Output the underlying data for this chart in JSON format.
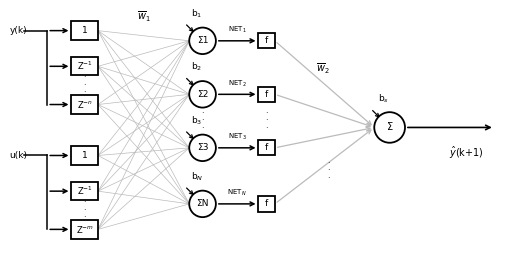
{
  "bg_color": "#ffffff",
  "line_color": "#000000",
  "gray_color": "#bbbbbb",
  "figsize": [
    5.23,
    2.6
  ],
  "dpi": 100,
  "input_y_label": "y(k)",
  "input_u_label": "u(k)",
  "w1_label": "$\\overline{w}_1$",
  "w2_label": "$\\overline{w}_2$",
  "bs_label": "b$_s$",
  "output_label": "$\\hat{y}$(k+1)",
  "input_boxes_y": [
    "1",
    "Z$^{-1}$",
    "Z$^{-n}$"
  ],
  "input_boxes_u": [
    "1",
    "Z$^{-1}$",
    "Z$^{-m}$"
  ],
  "hidden_nodes": [
    "Σ1",
    "Σ2",
    "Σ3",
    "ΣN"
  ],
  "hidden_biases": [
    "b$_1$",
    "b$_2$",
    "b$_3$",
    "b$_N$"
  ],
  "hidden_nets": [
    "NET$_1$",
    "NET$_2$",
    "NET$_3$",
    "NET$_N$"
  ],
  "output_node": "Σ"
}
